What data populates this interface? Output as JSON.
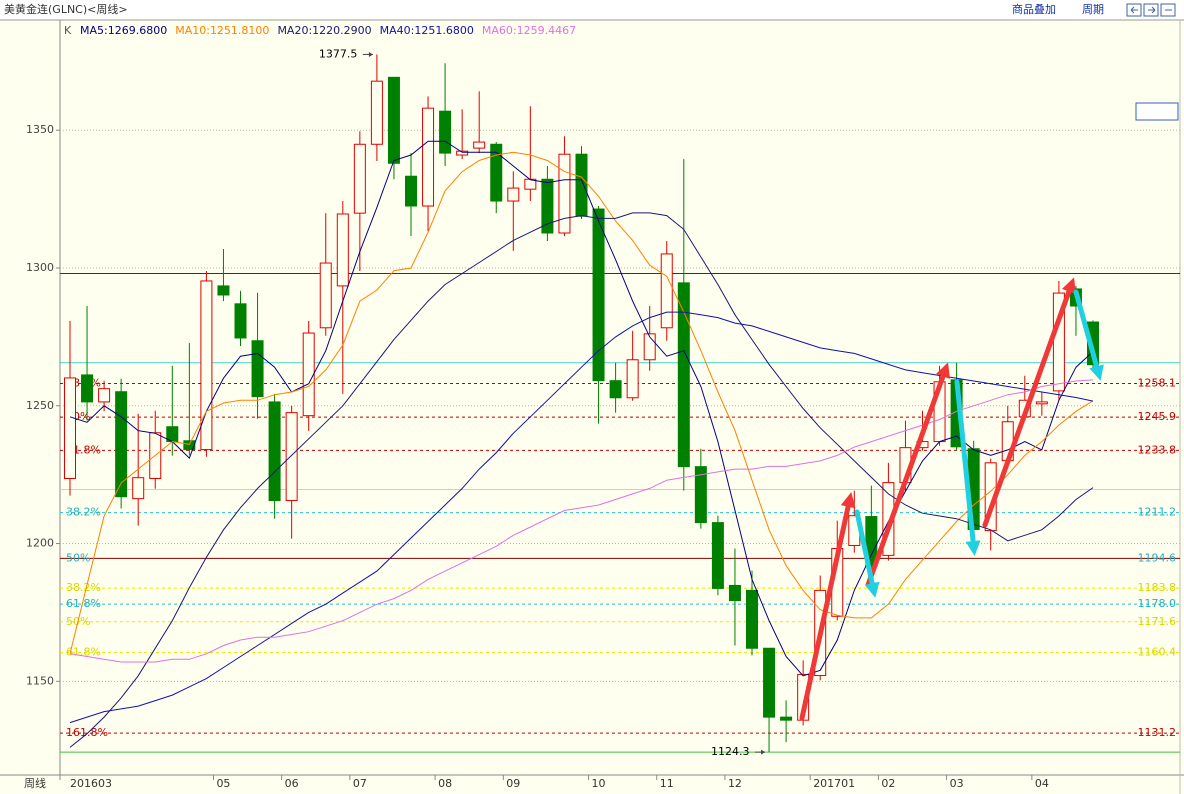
{
  "chart_data": {
    "type": "candlestick",
    "title": "美黄金连(GLNC)<周线>",
    "toolbar": [
      "商品叠加",
      "周期"
    ],
    "x_label": "周线",
    "categories": [
      "201603",
      null,
      null,
      null,
      null,
      null,
      null,
      null,
      null,
      "05",
      null,
      null,
      null,
      "06",
      null,
      null,
      null,
      "07",
      null,
      null,
      null,
      null,
      "08",
      null,
      null,
      null,
      "09",
      null,
      null,
      null,
      null,
      "10",
      null,
      null,
      null,
      "11",
      null,
      null,
      null,
      "12",
      null,
      null,
      null,
      null,
      "201701",
      null,
      null,
      null,
      "02",
      null,
      null,
      null,
      "03",
      null,
      null,
      null,
      null,
      "04",
      null,
      null,
      null
    ],
    "ylim": [
      1116,
      1390
    ],
    "yticks": [
      1150,
      1200,
      1250,
      1300,
      1350
    ],
    "grid": true,
    "candles": {
      "name": "K",
      "up_color": "#e00000",
      "down_color": "#008000",
      "open": [
        1223.6,
        1261.2,
        1251.4,
        1255.1,
        1216.3,
        1223.6,
        1242.4,
        1237.3,
        1234.1,
        1293.5,
        1287.0,
        1273.6,
        1251.4,
        1215.6,
        1246.4,
        1278.3,
        1293.5,
        1319.9,
        1344.9,
        1369.2,
        1333.3,
        1322.5,
        1356.9,
        1341.0,
        1343.5,
        1344.9,
        1324.3,
        1328.6,
        1332.2,
        1312.7,
        1341.3,
        1321.4,
        1259.1,
        1252.9,
        1266.7,
        1278.3,
        1294.6,
        1227.9,
        1207.6,
        1184.8,
        1183.0,
        1162.0,
        1137.0,
        1135.9,
        1152.1,
        1173.6,
        1199.3,
        1209.8,
        1195.7,
        1222.1,
        1234.8,
        1237.0,
        1259.4,
        1234.4,
        1204.7,
        1230.1,
        1246.0,
        1250.7,
        1255.4,
        1292.4,
        1280.4
      ],
      "high": [
        1280.8,
        1286.2,
        1259.1,
        1259.8,
        1247.1,
        1248.2,
        1264.5,
        1272.8,
        1298.9,
        1306.9,
        1291.7,
        1291.0,
        1254.3,
        1250.0,
        1280.8,
        1319.9,
        1324.3,
        1349.6,
        1377.5,
        1369.2,
        1341.7,
        1362.3,
        1374.3,
        1357.6,
        1364.1,
        1345.7,
        1335.1,
        1358.7,
        1337.0,
        1347.8,
        1344.2,
        1322.5,
        1265.6,
        1277.2,
        1286.2,
        1309.8,
        1339.5,
        1234.4,
        1210.1,
        1198.2,
        1190.2,
        1162.0,
        1143.1,
        1157.6,
        1188.4,
        1208.3,
        1219.2,
        1221.0,
        1229.3,
        1244.6,
        1248.2,
        1264.5,
        1265.6,
        1237.3,
        1230.8,
        1250.0,
        1260.9,
        1255.0,
        1295.3,
        1293.5,
        1281.0
      ],
      "low": [
        1217.4,
        1244.6,
        1248.0,
        1212.7,
        1206.5,
        1219.9,
        1231.9,
        1232.0,
        1231.5,
        1288.0,
        1271.7,
        1245.3,
        1209.0,
        1201.8,
        1240.9,
        1275.4,
        1254.3,
        1298.9,
        1338.8,
        1332.2,
        1311.6,
        1313.4,
        1337.0,
        1339.5,
        1341.7,
        1319.9,
        1306.2,
        1324.3,
        1309.8,
        1311.6,
        1317.8,
        1243.5,
        1247.5,
        1251.8,
        1262.7,
        1273.6,
        1219.2,
        1205.4,
        1181.2,
        1163.0,
        1159.4,
        1124.3,
        1127.9,
        1134.0,
        1150.4,
        1172.1,
        1196.7,
        1186.6,
        1193.8,
        1219.2,
        1233.7,
        1235.5,
        1233.7,
        1199.3,
        1197.5,
        1227.2,
        1244.6,
        1246.4,
        1251.8,
        1275.4,
        1262.7
      ],
      "close": [
        1260.1,
        1251.4,
        1256.2,
        1217.0,
        1223.9,
        1240.2,
        1237.0,
        1234.1,
        1295.3,
        1290.2,
        1274.6,
        1253.3,
        1215.6,
        1247.5,
        1276.4,
        1301.8,
        1319.6,
        1344.9,
        1367.8,
        1338.0,
        1322.5,
        1358.0,
        1341.7,
        1342.4,
        1345.7,
        1324.3,
        1329.0,
        1332.2,
        1312.7,
        1341.3,
        1318.8,
        1259.1,
        1252.9,
        1266.7,
        1276.1,
        1305.1,
        1227.9,
        1207.6,
        1183.7,
        1179.3,
        1162.0,
        1137.0,
        1135.9,
        1152.5,
        1183.0,
        1198.2,
        1210.1,
        1191.7,
        1222.1,
        1234.8,
        1237.0,
        1258.7,
        1235.1,
        1205.1,
        1229.3,
        1244.2,
        1252.0,
        1251.4,
        1290.9,
        1286.2,
        1264.9
      ]
    },
    "series": [
      {
        "name": "MA5:1269.6800",
        "color": "#000080",
        "values": [
          1246,
          1244,
          1250,
          1246,
          1241,
          1240,
          1237,
          1231,
          1248,
          1260,
          1268,
          1269,
          1264,
          1255,
          1258,
          1270,
          1288,
          1306,
          1322,
          1339,
          1341,
          1346,
          1346,
          1342,
          1342,
          1342,
          1337,
          1332,
          1331,
          1332,
          1332,
          1317,
          1303,
          1288,
          1275,
          1268,
          1270,
          1257,
          1237,
          1212,
          1187,
          1172,
          1159,
          1152,
          1154,
          1165,
          1183,
          1196,
          1208,
          1219,
          1230,
          1237,
          1239,
          1234,
          1232,
          1234,
          1237,
          1234,
          1252,
          1264,
          1269.7
        ]
      },
      {
        "name": "MA10:1251.8100",
        "color": "#ff8000",
        "values": [
          1160,
          1185,
          1210,
          1222,
          1227,
          1232,
          1237,
          1236,
          1248,
          1251,
          1252,
          1252,
          1254,
          1255,
          1257,
          1263,
          1272,
          1288,
          1292,
          1299,
          1300,
          1313,
          1328,
          1335,
          1339,
          1341,
          1342,
          1341,
          1339,
          1335,
          1333,
          1326,
          1317,
          1310,
          1301,
          1297,
          1284,
          1270,
          1255,
          1241,
          1223,
          1205,
          1192,
          1183,
          1176,
          1174,
          1173,
          1173,
          1178,
          1187,
          1194,
          1201,
          1208,
          1214,
          1219,
          1225,
          1232,
          1237,
          1243,
          1248,
          1251.8
        ]
      },
      {
        "name": "MA20:1220.2900",
        "color": "#1a1a70",
        "values": [
          1126,
          1131,
          1137,
          1144,
          1152,
          1162,
          1172,
          1184,
          1195,
          1205,
          1213,
          1220,
          1226,
          1232,
          1238,
          1244,
          1250,
          1258,
          1266,
          1274,
          1281,
          1288,
          1294,
          1298,
          1302,
          1306,
          1310,
          1313,
          1316,
          1318,
          1319,
          1318,
          1318,
          1320,
          1320,
          1319,
          1314,
          1304,
          1294,
          1283,
          1274,
          1265,
          1257,
          1249,
          1242,
          1236,
          1230,
          1224,
          1218,
          1214,
          1211,
          1210,
          1209,
          1207,
          1205,
          1201,
          1203,
          1205,
          1210,
          1216,
          1220.3
        ]
      },
      {
        "name": "MA40:1251.6800",
        "color": "#1010b0",
        "values": [
          1135,
          1137,
          1139,
          1140,
          1141,
          1143,
          1145,
          1148,
          1151,
          1155,
          1159,
          1163,
          1167,
          1171,
          1175,
          1178,
          1182,
          1186,
          1190,
          1196,
          1202,
          1208,
          1214,
          1220,
          1227,
          1233,
          1240,
          1246,
          1252,
          1258,
          1264,
          1270,
          1275,
          1279,
          1282,
          1284,
          1284,
          1283,
          1282,
          1280,
          1279,
          1277,
          1275,
          1273,
          1271,
          1270,
          1269,
          1267,
          1265,
          1263,
          1262,
          1261,
          1260,
          1259,
          1258,
          1257,
          1256,
          1255,
          1254,
          1253,
          1251.7
        ]
      },
      {
        "name": "MA60:1259.4467",
        "color": "#e070e0",
        "values": [
          1160,
          1159,
          1158,
          1157,
          1157,
          1157,
          1158,
          1158,
          1160,
          1163,
          1165,
          1166,
          1166,
          1167,
          1168,
          1170,
          1172,
          1175,
          1178,
          1180,
          1183,
          1187,
          1190,
          1193,
          1196,
          1199,
          1203,
          1206,
          1209,
          1212,
          1213,
          1214,
          1216,
          1218,
          1220,
          1223,
          1224,
          1225,
          1226,
          1227,
          1227,
          1228,
          1228,
          1229,
          1230,
          1232,
          1235,
          1237,
          1239,
          1241,
          1243,
          1245,
          1248,
          1250,
          1252,
          1254,
          1255,
          1257,
          1258,
          1259,
          1259.4
        ]
      }
    ],
    "levels": [
      {
        "value": 1298,
        "color": "#b00000",
        "dash": false
      },
      {
        "value": 1265.6,
        "color": "#40d0d0",
        "dash": false
      },
      {
        "value": 1258.1,
        "label": "1258.1",
        "pct": "38.2%",
        "color": "#c00000",
        "text_color": "#c00000",
        "dash": true
      },
      {
        "value": 1245.9,
        "label": "1245.9",
        "pct": "50%",
        "color": "#c00000",
        "text_color": "#c00000",
        "dash": true
      },
      {
        "value": 1233.8,
        "label": "1233.8",
        "pct": "61.8%",
        "color": "#c00000",
        "text_color": "#c00000",
        "dash": true
      },
      {
        "value": 1219.6,
        "color": "#e8e800",
        "dash": false
      },
      {
        "value": 1211.2,
        "label": "1211.2",
        "pct": "38.2%",
        "color": "#20c0d0",
        "text_color": "#20b0c0",
        "dash": true
      },
      {
        "value": 1194.6,
        "label": "1194.6",
        "pct": "50%",
        "color": "#800000",
        "text_color": "#20b0c0",
        "dash": false
      },
      {
        "value": 1183.8,
        "label": "1183.8",
        "pct": "38.2%",
        "color": "#e8e800",
        "text_color": "#d8d800",
        "dash": true
      },
      {
        "value": 1178.0,
        "label": "1178.0",
        "pct": "61.8%",
        "color": "#20c0d0",
        "text_color": "#20b0c0",
        "dash": true
      },
      {
        "value": 1171.6,
        "label": "1171.6",
        "pct": "50%",
        "color": "#e8e800",
        "text_color": "#d8d800",
        "dash": true
      },
      {
        "value": 1160.4,
        "label": "1160.4",
        "pct": "61.8%",
        "color": "#e8e800",
        "text_color": "#d8d800",
        "dash": true
      },
      {
        "value": 1131.2,
        "label": "1131.2",
        "pct": "161.8%",
        "color": "#c00000",
        "text_color": "#c00000",
        "dash": true
      },
      {
        "value": 1124.3,
        "color": "#40c040",
        "dash": false
      }
    ],
    "annotations": [
      {
        "text": "1377.5",
        "value": 1377.5,
        "index": 18
      },
      {
        "text": "1124.3",
        "value": 1124.3,
        "index": 41
      }
    ]
  }
}
